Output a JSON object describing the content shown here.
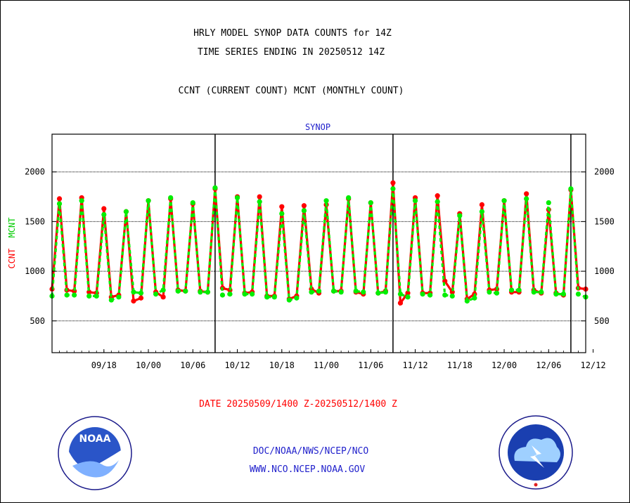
{
  "header": {
    "line1": "HRLY MODEL SYNOP DATA COUNTS for 14Z",
    "line2": "TIME SERIES ENDING IN 20250512 14Z",
    "line3": "CCNT (CURRENT COUNT) MCNT (MONTHLY COUNT)"
  },
  "footer": {
    "date_range": "DATE 20250509/1400 Z-20250512/1400 Z",
    "org": "DOC/NOAA/NWS/NCEP/NCO",
    "url": "WWW.NCO.NCEP.NOAA.GOV"
  },
  "logos": {
    "left": "noaa-logo",
    "right": "nws-logo"
  },
  "chart_data": {
    "type": "line",
    "title": "SYNOP",
    "ylabel_parts": [
      {
        "text": "CCNT",
        "color": "#ff0000"
      },
      {
        "text": "MCNT",
        "color": "#00cc00"
      }
    ],
    "ylim": [
      180,
      2380
    ],
    "y_ticks": [
      500,
      1000,
      1500,
      2000
    ],
    "y_tick_labels": [
      "500",
      "1000",
      "1500",
      "2000"
    ],
    "gridlines": [
      500,
      1000,
      1500,
      2000
    ],
    "x_ticks": [
      {
        "label": "09/18",
        "x": 7
      },
      {
        "label": "10/00",
        "x": 13
      },
      {
        "label": "10/06",
        "x": 19
      },
      {
        "label": "10/12",
        "x": 25
      },
      {
        "label": "10/18",
        "x": 31
      },
      {
        "label": "11/00",
        "x": 37
      },
      {
        "label": "11/06",
        "x": 43
      },
      {
        "label": "11/12",
        "x": 49
      },
      {
        "label": "11/18",
        "x": 55
      },
      {
        "label": "12/00",
        "x": 61
      },
      {
        "label": "12/06",
        "x": 67
      },
      {
        "label": "12/12",
        "x": 73
      }
    ],
    "xlim": [
      0,
      72
    ],
    "day_boundaries": [
      22,
      46,
      70
    ],
    "colors": {
      "current": "#ff0000",
      "monthly": "#00ee00"
    },
    "series": [
      {
        "name": "CCNT",
        "color": "#ff0000",
        "values": [
          820,
          1730,
          810,
          800,
          1740,
          790,
          780,
          1630,
          740,
          760,
          1600,
          700,
          730,
          1710,
          790,
          740,
          1730,
          810,
          800,
          1680,
          800,
          790,
          1830,
          830,
          810,
          1750,
          780,
          790,
          1750,
          750,
          750,
          1650,
          720,
          750,
          1660,
          820,
          780,
          1670,
          800,
          800,
          1730,
          790,
          770,
          1690,
          780,
          800,
          1890,
          680,
          780,
          1740,
          780,
          780,
          1760,
          900,
          790,
          1580,
          720,
          770,
          1670,
          810,
          820,
          1710,
          790,
          790,
          1780,
          810,
          780,
          1620,
          780,
          760,
          1820,
          830,
          820
        ]
      },
      {
        "name": "MCNT",
        "color": "#00ee00",
        "values": [
          750,
          1680,
          760,
          760,
          1710,
          750,
          750,
          1570,
          710,
          740,
          1600,
          790,
          780,
          1710,
          770,
          810,
          1740,
          800,
          800,
          1690,
          790,
          790,
          1840,
          760,
          770,
          1740,
          770,
          770,
          1700,
          740,
          740,
          1580,
          710,
          730,
          1610,
          790,
          800,
          1710,
          800,
          790,
          1740,
          800,
          790,
          1690,
          780,
          790,
          1830,
          770,
          740,
          1710,
          770,
          760,
          1700,
          760,
          750,
          1560,
          700,
          730,
          1600,
          790,
          780,
          1710,
          810,
          810,
          1730,
          790,
          790,
          1690,
          770,
          770,
          1830,
          770,
          740
        ]
      }
    ]
  }
}
